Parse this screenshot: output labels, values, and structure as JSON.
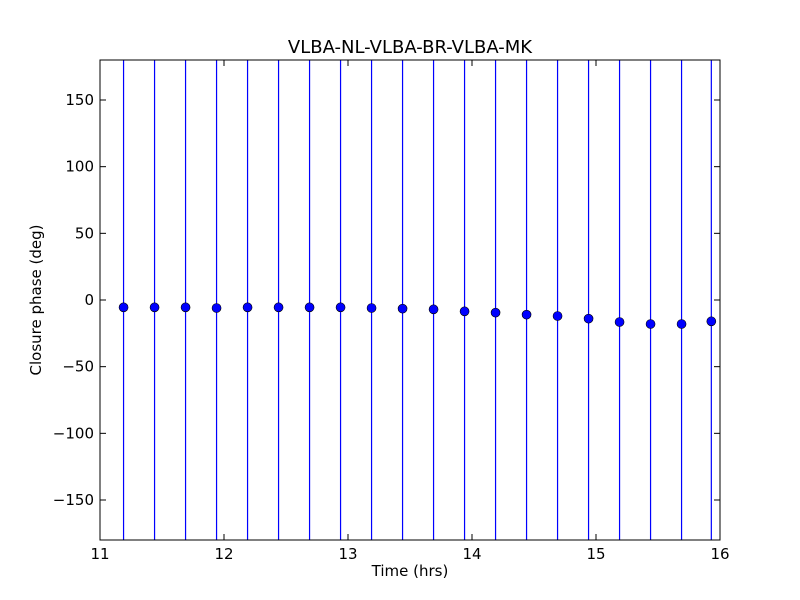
{
  "chart_data": {
    "type": "scatter",
    "title": "VLBA-NL-VLBA-BR-VLBA-MK",
    "xlabel": "Time (hrs)",
    "ylabel": "Closure phase (deg)",
    "xlim": [
      11,
      16
    ],
    "ylim": [
      -180,
      180
    ],
    "xticks": [
      11,
      12,
      13,
      14,
      15,
      16
    ],
    "xtick_labels": [
      "11",
      "12",
      "13",
      "14",
      "15",
      "16"
    ],
    "yticks": [
      -150,
      -100,
      -50,
      0,
      50,
      100,
      150
    ],
    "ytick_labels": [
      "−150",
      "−100",
      "−50",
      "0",
      "50",
      "100",
      "150"
    ],
    "grid": false,
    "colors": {
      "marker": "#0000ff",
      "errorbar": "#0000ff",
      "axes": "#000000"
    },
    "series": [
      {
        "x": [
          11.19,
          11.44,
          11.69,
          11.94,
          12.19,
          12.44,
          12.69,
          12.94,
          13.19,
          13.44,
          13.69,
          13.94,
          14.19,
          14.44,
          14.69,
          14.94,
          15.19,
          15.44,
          15.69,
          15.93
        ],
        "y": [
          -5.5,
          -5.5,
          -5.5,
          -6,
          -5.5,
          -5.5,
          -5.5,
          -5.5,
          -6,
          -6.5,
          -7,
          -8.5,
          -9.5,
          -11,
          -12,
          -14,
          -16.5,
          -18,
          -18,
          -16
        ],
        "errorbar_y": "full axis range (exceeds ±180)"
      }
    ]
  }
}
